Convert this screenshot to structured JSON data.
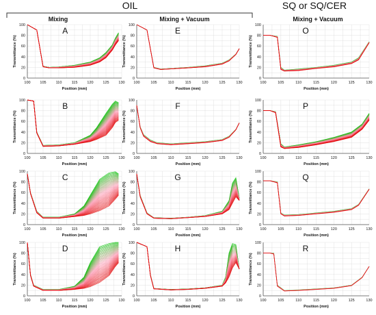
{
  "figure": {
    "group_headers": {
      "oil": "OIL",
      "sq": "SQ or SQ/CER"
    },
    "column_headers": [
      "Mixing",
      "Mixing + Vacuum",
      "Mixing + Vacuum"
    ],
    "colors": {
      "early_scan": "#00c000",
      "mid_scan": "#ffb3c8",
      "late_scan": "#e00000",
      "text": "#111111",
      "grid": "#d9d9d9"
    }
  },
  "chart_data": [
    {
      "id": "A",
      "type": "line",
      "panel_label": "A",
      "column": "Mixing",
      "group": "OIL",
      "xlabel": "Position (mm)",
      "ylabel": "Transmittance (%)",
      "xlim": [
        100,
        130
      ],
      "ylim": [
        0,
        100
      ],
      "x_ticks": [
        100,
        105,
        110,
        115,
        120,
        125,
        130
      ],
      "y_ticks": [
        0,
        20,
        40,
        60,
        80,
        100
      ],
      "grid": true,
      "legend": "none",
      "series_families": [
        {
          "x": [
            100,
            103,
            105,
            107,
            110,
            115,
            120,
            123,
            125,
            127,
            128,
            129
          ],
          "y_first": [
            100,
            90,
            22,
            20,
            21,
            24,
            30,
            38,
            48,
            62,
            75,
            85
          ],
          "y_last": [
            100,
            90,
            21,
            19,
            19,
            20,
            24,
            30,
            38,
            52,
            62,
            70
          ],
          "curve_count": 40
        }
      ]
    },
    {
      "id": "E",
      "type": "line",
      "panel_label": "E",
      "column": "Mixing + Vacuum",
      "group": "OIL",
      "xlabel": "Position (mm)",
      "ylabel": "Transmittance (%)",
      "xlim": [
        100,
        130
      ],
      "ylim": [
        0,
        100
      ],
      "x_ticks": [
        100,
        105,
        110,
        115,
        120,
        125,
        130
      ],
      "y_ticks": [
        0,
        20,
        40,
        60,
        80,
        100
      ],
      "grid": true,
      "legend": "none",
      "series_families": [
        {
          "x": [
            100,
            103,
            105,
            107,
            110,
            115,
            120,
            125,
            127,
            129,
            130
          ],
          "y_first": [
            100,
            90,
            20,
            17,
            18,
            20,
            23,
            28,
            34,
            45,
            55
          ],
          "y_last": [
            100,
            90,
            19,
            16,
            17,
            19,
            21,
            26,
            32,
            44,
            55
          ],
          "curve_count": 20
        }
      ]
    },
    {
      "id": "O",
      "type": "line",
      "panel_label": "O",
      "column": "Mixing + Vacuum",
      "group": "SQ or SQ/CER",
      "xlabel": "Position (mm)",
      "ylabel": "Transmittance (%)",
      "xlim": [
        100,
        130
      ],
      "ylim": [
        0,
        100
      ],
      "x_ticks": [
        100,
        105,
        110,
        115,
        120,
        125,
        130
      ],
      "y_ticks": [
        0,
        20,
        40,
        60,
        80,
        100
      ],
      "grid": true,
      "legend": "none",
      "series_families": [
        {
          "x": [
            100,
            102,
            104,
            105,
            106,
            110,
            115,
            120,
            125,
            127,
            130
          ],
          "y_first": [
            80,
            80,
            78,
            20,
            15,
            17,
            20,
            24,
            30,
            38,
            68
          ],
          "y_last": [
            80,
            80,
            76,
            16,
            13,
            14,
            18,
            21,
            27,
            34,
            66
          ],
          "curve_count": 20
        }
      ]
    },
    {
      "id": "B",
      "type": "line",
      "panel_label": "B",
      "column": "Mixing",
      "group": "OIL",
      "xlabel": "Position (mm)",
      "ylabel": "Transmittance (%)",
      "xlim": [
        100,
        130
      ],
      "ylim": [
        0,
        100
      ],
      "x_ticks": [
        100,
        105,
        110,
        115,
        120,
        125,
        130
      ],
      "y_ticks": [
        0,
        20,
        40,
        60,
        80,
        100
      ],
      "grid": true,
      "legend": "none",
      "series_families": [
        {
          "x": [
            100,
            102,
            103,
            105,
            110,
            115,
            120,
            122,
            125,
            127,
            128,
            129
          ],
          "y_first": [
            100,
            98,
            40,
            15,
            16,
            20,
            34,
            48,
            75,
            92,
            98,
            95
          ],
          "y_last": [
            100,
            98,
            38,
            13,
            14,
            17,
            22,
            26,
            34,
            48,
            58,
            62
          ],
          "curve_count": 40
        }
      ]
    },
    {
      "id": "F",
      "type": "line",
      "panel_label": "F",
      "column": "Mixing + Vacuum",
      "group": "OIL",
      "xlabel": "Position (mm)",
      "ylabel": "Transmittance (%)",
      "xlim": [
        100,
        130
      ],
      "ylim": [
        0,
        100
      ],
      "x_ticks": [
        100,
        105,
        110,
        115,
        120,
        125,
        130
      ],
      "y_ticks": [
        0,
        20,
        40,
        60,
        80,
        100
      ],
      "grid": true,
      "legend": "none",
      "series_families": [
        {
          "x": [
            100,
            101,
            102,
            104,
            106,
            110,
            115,
            120,
            125,
            127,
            129,
            130
          ],
          "y_first": [
            90,
            50,
            35,
            25,
            20,
            18,
            20,
            22,
            26,
            32,
            45,
            57
          ],
          "y_last": [
            90,
            48,
            32,
            22,
            18,
            16,
            18,
            20,
            24,
            30,
            44,
            57
          ],
          "curve_count": 20
        }
      ]
    },
    {
      "id": "P",
      "type": "line",
      "panel_label": "P",
      "column": "Mixing + Vacuum",
      "group": "SQ or SQ/CER",
      "xlabel": "Position (mm)",
      "ylabel": "Transmittance (%)",
      "xlim": [
        100,
        130
      ],
      "ylim": [
        0,
        100
      ],
      "x_ticks": [
        100,
        105,
        110,
        115,
        120,
        125,
        130
      ],
      "y_ticks": [
        0,
        20,
        40,
        60,
        80,
        100
      ],
      "grid": true,
      "legend": "none",
      "series_families": [
        {
          "x": [
            100,
            102,
            103.5,
            105,
            106,
            110,
            115,
            120,
            125,
            128,
            130
          ],
          "y_first": [
            80,
            80,
            78,
            18,
            12,
            16,
            22,
            30,
            40,
            55,
            75
          ],
          "y_last": [
            80,
            80,
            76,
            12,
            9,
            11,
            16,
            22,
            30,
            45,
            62
          ],
          "curve_count": 40
        }
      ]
    },
    {
      "id": "C",
      "type": "line",
      "panel_label": "C",
      "column": "Mixing",
      "group": "OIL",
      "xlabel": "Position (mm)",
      "ylabel": "Transmittance (%)",
      "xlim": [
        100,
        130
      ],
      "ylim": [
        0,
        100
      ],
      "x_ticks": [
        100,
        105,
        110,
        115,
        120,
        125,
        130
      ],
      "y_ticks": [
        0,
        20,
        40,
        60,
        80,
        100
      ],
      "grid": true,
      "legend": "none",
      "series_families": [
        {
          "x": [
            100,
            101,
            103,
            105,
            110,
            115,
            118,
            120,
            123,
            126,
            128,
            129
          ],
          "y_first": [
            95,
            60,
            25,
            14,
            14,
            20,
            35,
            55,
            85,
            97,
            99,
            95
          ],
          "y_last": [
            95,
            58,
            22,
            12,
            12,
            15,
            17,
            20,
            26,
            35,
            48,
            55
          ],
          "curve_count": 40
        }
      ]
    },
    {
      "id": "G",
      "type": "line",
      "panel_label": "G",
      "column": "Mixing + Vacuum",
      "group": "OIL",
      "xlabel": "Position (mm)",
      "ylabel": "Transmittance (%)",
      "xlim": [
        100,
        130
      ],
      "ylim": [
        0,
        100
      ],
      "x_ticks": [
        100,
        105,
        110,
        115,
        120,
        125,
        130
      ],
      "y_ticks": [
        0,
        20,
        40,
        60,
        80,
        100
      ],
      "grid": true,
      "legend": "none",
      "series_families": [
        {
          "x": [
            100,
            101,
            103,
            105,
            110,
            115,
            120,
            125,
            127,
            128,
            129,
            130
          ],
          "y_first": [
            95,
            55,
            22,
            13,
            12,
            14,
            17,
            25,
            45,
            78,
            88,
            50
          ],
          "y_last": [
            95,
            52,
            20,
            12,
            11,
            13,
            15,
            20,
            28,
            40,
            52,
            45
          ],
          "curve_count": 30
        }
      ]
    },
    {
      "id": "Q",
      "type": "line",
      "panel_label": "Q",
      "column": "Mixing + Vacuum",
      "group": "SQ or SQ/CER",
      "xlabel": "Position (mm)",
      "ylabel": "Transmittance (%)",
      "xlim": [
        100,
        130
      ],
      "ylim": [
        0,
        100
      ],
      "x_ticks": [
        100,
        105,
        110,
        115,
        120,
        125,
        130
      ],
      "y_ticks": [
        0,
        20,
        40,
        60,
        80,
        100
      ],
      "grid": true,
      "legend": "none",
      "series_families": [
        {
          "x": [
            100,
            102,
            104,
            105,
            106,
            110,
            115,
            120,
            125,
            127,
            130
          ],
          "y_first": [
            82,
            82,
            80,
            22,
            18,
            19,
            22,
            25,
            30,
            38,
            67
          ],
          "y_last": [
            82,
            82,
            78,
            20,
            16,
            17,
            20,
            23,
            28,
            36,
            66
          ],
          "curve_count": 15
        }
      ]
    },
    {
      "id": "D",
      "type": "line",
      "panel_label": "D",
      "column": "Mixing",
      "group": "OIL",
      "xlabel": "Position (mm)",
      "ylabel": "Transmittance (%)",
      "xlim": [
        100,
        130
      ],
      "ylim": [
        0,
        100
      ],
      "x_ticks": [
        100,
        105,
        110,
        115,
        120,
        125,
        130
      ],
      "y_ticks": [
        0,
        20,
        40,
        60,
        80,
        100
      ],
      "grid": true,
      "legend": "none",
      "series_families": [
        {
          "x": [
            100,
            101,
            102,
            105,
            110,
            115,
            118,
            120,
            123,
            126,
            128,
            129
          ],
          "y_first": [
            100,
            40,
            20,
            12,
            12,
            18,
            35,
            62,
            92,
            98,
            100,
            100
          ],
          "y_last": [
            100,
            38,
            18,
            10,
            10,
            12,
            14,
            17,
            25,
            38,
            55,
            62
          ],
          "curve_count": 40
        }
      ]
    },
    {
      "id": "H",
      "type": "line",
      "panel_label": "H",
      "column": "Mixing + Vacuum",
      "group": "OIL",
      "xlabel": "Position (mm)",
      "ylabel": "Transmittance (%)",
      "xlim": [
        100,
        130
      ],
      "ylim": [
        0,
        100
      ],
      "x_ticks": [
        100,
        105,
        110,
        115,
        120,
        125,
        130
      ],
      "y_ticks": [
        0,
        20,
        40,
        60,
        80,
        100
      ],
      "grid": true,
      "legend": "none",
      "series_families": [
        {
          "x": [
            100,
            103,
            104,
            105,
            110,
            115,
            120,
            125,
            126,
            127,
            128,
            129,
            130
          ],
          "y_first": [
            100,
            92,
            40,
            14,
            12,
            13,
            15,
            20,
            35,
            80,
            98,
            96,
            50
          ],
          "y_last": [
            100,
            92,
            38,
            13,
            11,
            12,
            14,
            18,
            24,
            35,
            52,
            62,
            50
          ],
          "curve_count": 30
        }
      ]
    },
    {
      "id": "R",
      "type": "line",
      "panel_label": "R",
      "column": "Mixing + Vacuum",
      "group": "SQ or SQ/CER",
      "xlabel": "Position (mm)",
      "ylabel": "Transmittance (%)",
      "xlim": [
        100,
        130
      ],
      "ylim": [
        0,
        100
      ],
      "x_ticks": [
        100,
        105,
        110,
        115,
        120,
        125,
        130
      ],
      "y_ticks": [
        0,
        20,
        40,
        60,
        80,
        100
      ],
      "grid": true,
      "legend": "none",
      "series_families": [
        {
          "x": [
            100,
            101,
            102,
            103,
            104,
            106,
            110,
            115,
            120,
            125,
            128,
            130
          ],
          "y_first": [
            80,
            80,
            80,
            80,
            20,
            10,
            11,
            13,
            15,
            20,
            35,
            55
          ],
          "y_last": [
            80,
            80,
            80,
            78,
            18,
            9,
            10,
            12,
            14,
            19,
            34,
            55
          ],
          "curve_count": 10
        }
      ]
    }
  ]
}
